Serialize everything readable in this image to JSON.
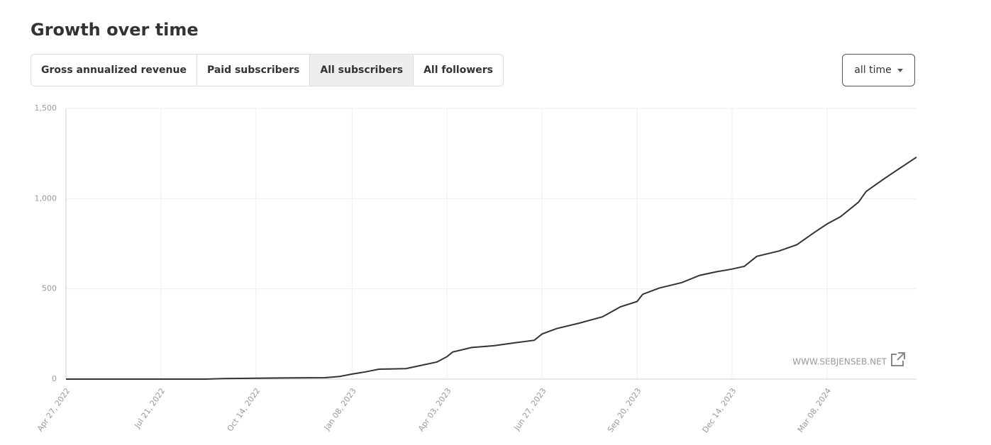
{
  "header": {
    "title": "Growth over time"
  },
  "tabs": [
    "Gross annualized revenue",
    "Paid subscribers",
    "All subscribers",
    "All followers"
  ],
  "active_tab": 2,
  "dropdown": "all time",
  "watermark": "WWW.SEBJENSEB.NET",
  "chart_data": {
    "type": "line",
    "color": "#333333",
    "grid": true,
    "x": [
      "2022-04-27",
      "2022-08-30",
      "2022-09-15",
      "2022-10-14",
      "2022-11-15",
      "2022-12-15",
      "2022-12-28",
      "2023-01-08",
      "2023-01-20",
      "2023-02-01",
      "2023-02-25",
      "2023-03-10",
      "2023-03-25",
      "2023-04-03",
      "2023-04-08",
      "2023-04-25",
      "2023-05-15",
      "2023-06-01",
      "2023-06-20",
      "2023-06-27",
      "2023-07-10",
      "2023-07-30",
      "2023-08-20",
      "2023-09-05",
      "2023-09-20",
      "2023-09-25",
      "2023-10-10",
      "2023-10-30",
      "2023-11-15",
      "2023-11-30",
      "2023-12-14",
      "2023-12-25",
      "2024-01-05",
      "2024-01-25",
      "2024-02-10",
      "2024-02-25",
      "2024-03-08",
      "2024-03-20",
      "2024-04-05",
      "2024-04-12",
      "2024-04-28",
      "2024-05-10",
      "2024-05-27"
    ],
    "values": [
      0,
      0,
      3,
      5,
      7,
      8,
      15,
      28,
      40,
      55,
      58,
      75,
      95,
      125,
      150,
      175,
      185,
      200,
      215,
      250,
      280,
      310,
      345,
      400,
      430,
      470,
      505,
      535,
      575,
      595,
      610,
      625,
      680,
      710,
      745,
      810,
      860,
      900,
      980,
      1040,
      1110,
      1160,
      1230
    ],
    "xlim": [
      "2022-04-27",
      "2024-05-27"
    ],
    "xticks": [
      {
        "value": "2022-04-27",
        "label": "Apr 27, 2022"
      },
      {
        "value": "2022-07-21",
        "label": "Jul 21, 2022"
      },
      {
        "value": "2022-10-14",
        "label": "Oct 14, 2022"
      },
      {
        "value": "2023-01-08",
        "label": "Jan 08, 2023"
      },
      {
        "value": "2023-04-03",
        "label": "Apr 03, 2023"
      },
      {
        "value": "2023-06-27",
        "label": "Jun 27, 2023"
      },
      {
        "value": "2023-09-20",
        "label": "Sep 20, 2023"
      },
      {
        "value": "2023-12-14",
        "label": "Dec 14, 2023"
      },
      {
        "value": "2024-03-08",
        "label": "Mar 08, 2024"
      }
    ],
    "ylim": [
      0,
      1500
    ],
    "yticks": [
      0,
      500,
      {
        "value": 1000,
        "label": "1,000"
      },
      {
        "value": 1500,
        "label": "1,500"
      }
    ]
  }
}
